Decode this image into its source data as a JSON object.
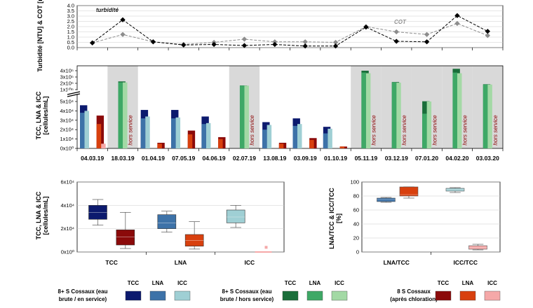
{
  "colors": {
    "tcc_raw": "#0c1a6e",
    "lna_raw": "#3d72a8",
    "icc_raw": "#9fcfd4",
    "tcc_out": "#1a6e3a",
    "lna_out": "#3ea866",
    "icc_out": "#a3d9a5",
    "tcc_chl": "#8b0a0a",
    "lna_chl": "#d8400e",
    "icc_chl": "#f5a8a8",
    "shade": "#d9d9d9"
  },
  "chart_data": [
    {
      "id": "turbidity",
      "type": "line",
      "ylabel": "Turbidité [NTU] & COT [mg/L]",
      "ylim": [
        0,
        4
      ],
      "yticks": [
        "0.0",
        "0.5",
        "1.0",
        "1.5",
        "2.0",
        "2.5",
        "3.0",
        "3.5",
        "4.0"
      ],
      "series": [
        {
          "name": "turbidité",
          "values": [
            0.45,
            2.65,
            0.55,
            0.25,
            0.3,
            0.2,
            0.3,
            0.15,
            0.15,
            1.95,
            0.6,
            0.55,
            3.05,
            1.55
          ]
        },
        {
          "name": "COT",
          "values": [
            0.45,
            1.25,
            0.55,
            0.3,
            0.5,
            0.8,
            0.55,
            0.55,
            0.5,
            2.0,
            1.5,
            1.25,
            2.3,
            1.15
          ]
        }
      ]
    },
    {
      "id": "time_bars",
      "type": "bar",
      "ylabel": "TCC, LNA & ICC [cellules/mL]",
      "yticks_low": [
        "0x10⁰",
        "1x10⁴",
        "2x10⁴",
        "3x10⁴",
        "4x10⁴",
        "5x10⁴"
      ],
      "yticks_high": [
        "1x10⁵",
        "2x10⁵",
        "3x10⁵",
        "4x10⁵"
      ],
      "categories": [
        "04.03.19",
        "18.03.19",
        "01.04.19",
        "07.05.19",
        "04.06.19",
        "02.07.19",
        "13.08.19",
        "03.09.19",
        "01.10.19",
        "05.11.19",
        "03.12.19",
        "07.01.20",
        "04.02.20",
        "03.03.20"
      ],
      "status": [
        "raw",
        "out",
        "raw",
        "raw",
        "raw",
        "out",
        "raw",
        "raw",
        "raw",
        "out",
        "out",
        "out",
        "out",
        "out"
      ],
      "chlorinated": [
        true,
        false,
        true,
        true,
        true,
        false,
        true,
        true,
        true,
        false,
        false,
        false,
        false,
        false
      ],
      "hors_service_label": "hors service",
      "tcc": [
        46000,
        230000,
        41000,
        41000,
        34000,
        165000,
        28000,
        32000,
        23000,
        400000,
        220000,
        51000,
        430000,
        185000
      ],
      "lna": [
        38000,
        215000,
        32000,
        32000,
        26000,
        163000,
        20000,
        24000,
        16000,
        370000,
        215000,
        37000,
        370000,
        180000
      ],
      "icc": [
        40000,
        215000,
        34000,
        33000,
        27000,
        163000,
        25000,
        26000,
        21000,
        360000,
        210000,
        50000,
        360000,
        180000
      ],
      "tcc_chl": [
        35000,
        null,
        6000,
        19000,
        12000,
        null,
        6000,
        11000,
        2000,
        null,
        null,
        null,
        null,
        null
      ],
      "lna_chl": [
        26000,
        null,
        5000,
        15000,
        10000,
        null,
        5000,
        9000,
        2000,
        null,
        null,
        null,
        null,
        null
      ],
      "icc_chl": [
        5000,
        null,
        0,
        0,
        0,
        null,
        0,
        0,
        0,
        null,
        null,
        null,
        null,
        null
      ]
    },
    {
      "id": "box_counts",
      "type": "box",
      "ylabel": "TCC, LNA & ICC [cellules/mL]",
      "yticks": [
        "0x10⁰",
        "2x10⁴",
        "4x10⁴",
        "6x10⁴"
      ],
      "ylim": [
        0,
        60000
      ],
      "categories": [
        "TCC",
        "LNA",
        "ICC"
      ],
      "boxes": [
        {
          "cat": "TCC",
          "kind": "raw",
          "min": 23000,
          "q1": 28000,
          "med": 34000,
          "q3": 40000,
          "max": 45000
        },
        {
          "cat": "TCC",
          "kind": "chl",
          "min": 3000,
          "q1": 6000,
          "med": 13000,
          "q3": 19000,
          "max": 34000
        },
        {
          "cat": "LNA",
          "kind": "raw",
          "min": 17000,
          "q1": 20000,
          "med": 25000,
          "q3": 32000,
          "max": 35000
        },
        {
          "cat": "LNA",
          "kind": "chl",
          "min": 2500,
          "q1": 5000,
          "med": 10000,
          "q3": 15000,
          "max": 26000
        },
        {
          "cat": "ICC",
          "kind": "raw",
          "min": 21000,
          "q1": 25000,
          "med": 30000,
          "q3": 36000,
          "max": 40000
        },
        {
          "cat": "ICC",
          "kind": "chl",
          "min": 0,
          "q1": 0,
          "med": 0,
          "q3": 0,
          "max": 0
        }
      ],
      "icc_chl_outlier": 4000
    },
    {
      "id": "box_ratios",
      "type": "box",
      "ylabel": "LNA/TCC & ICC/TCC [%]",
      "yticks": [
        "0",
        "20",
        "40",
        "60",
        "80",
        "100"
      ],
      "ylim": [
        0,
        100
      ],
      "categories": [
        "LNA/TCC",
        "ICC/TCC"
      ],
      "boxes": [
        {
          "cat": "LNA/TCC",
          "kind": "raw",
          "min": 71,
          "q1": 72,
          "med": 75,
          "q3": 77,
          "max": 78
        },
        {
          "cat": "LNA/TCC",
          "kind": "chl",
          "min": 77,
          "q1": 80,
          "med": 82,
          "q3": 93,
          "max": 93
        },
        {
          "cat": "ICC/TCC",
          "kind": "raw",
          "min": 85,
          "q1": 87,
          "med": 89,
          "q3": 91,
          "max": 92
        },
        {
          "cat": "ICC/TCC",
          "kind": "chl",
          "min": 3,
          "q1": 4,
          "med": 6,
          "q3": 9,
          "max": 11
        }
      ]
    }
  ],
  "annotations": {
    "turbidite": "turbidité",
    "cot": "COT"
  },
  "legend": {
    "headers": [
      "TCC",
      "LNA",
      "ICC"
    ],
    "groups": [
      {
        "line1": "8+ S Cossaux (eau",
        "line2": "brute / en service)"
      },
      {
        "line1": "8+ S Cossaux (eau",
        "line2": "brute / hors service)"
      },
      {
        "line1": "8 S Cossaux",
        "line2": "(après chloration)"
      }
    ]
  }
}
